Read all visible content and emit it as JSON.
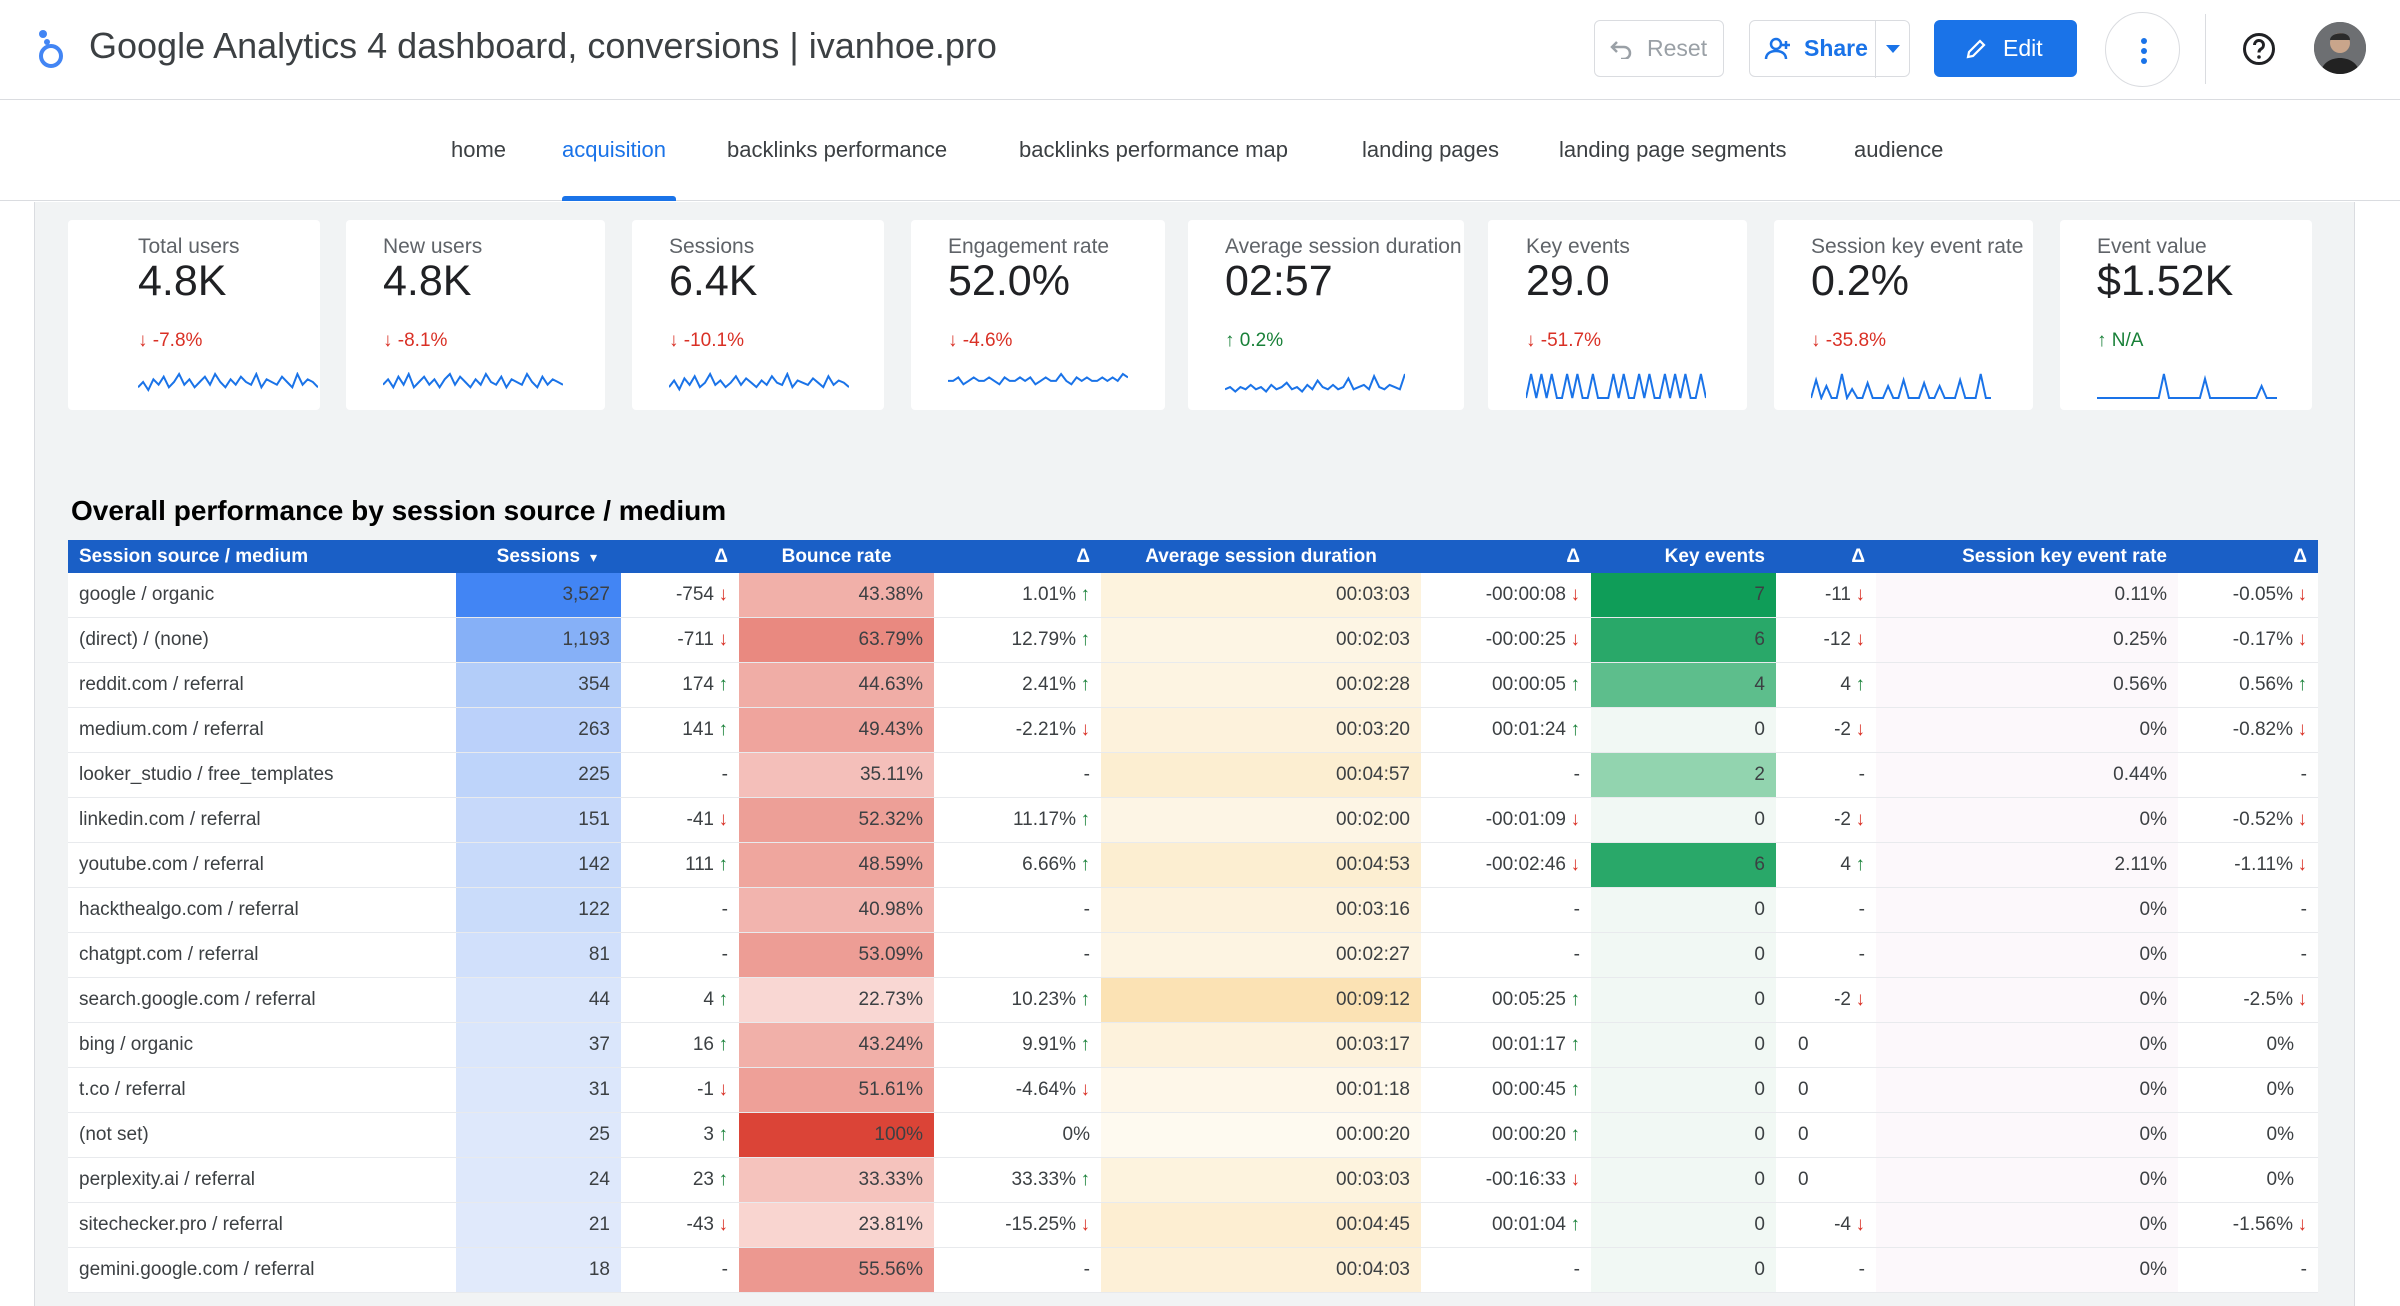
{
  "header": {
    "title": "Google Analytics 4 dashboard, conversions | ivanhoe.pro",
    "reset_label": "Reset",
    "share_label": "Share",
    "edit_label": "Edit"
  },
  "tabs": [
    {
      "label": "home"
    },
    {
      "label": "acquisition",
      "active": true
    },
    {
      "label": "backlinks performance"
    },
    {
      "label": "backlinks performance map"
    },
    {
      "label": "landing pages"
    },
    {
      "label": "landing page segments"
    },
    {
      "label": "audience"
    }
  ],
  "scorecards": [
    {
      "label": "Total users",
      "value": "4.8K",
      "change": "-7.8%",
      "direction": "down",
      "spark": [
        4,
        6,
        3,
        7,
        5,
        8,
        4,
        6,
        9,
        5,
        7,
        4,
        6,
        8,
        5,
        9,
        6,
        4,
        7,
        5,
        8,
        6,
        5,
        9,
        4,
        7,
        6,
        5,
        8,
        6,
        4,
        9,
        5,
        7,
        6,
        4
      ]
    },
    {
      "label": "New users",
      "value": "4.8K",
      "change": "-8.1%",
      "direction": "down",
      "spark": [
        5,
        7,
        4,
        8,
        5,
        9,
        4,
        6,
        8,
        5,
        7,
        4,
        7,
        9,
        5,
        8,
        6,
        4,
        7,
        5,
        9,
        6,
        5,
        8,
        4,
        7,
        6,
        5,
        9,
        6,
        4,
        8,
        5,
        7,
        6,
        5
      ]
    },
    {
      "label": "Sessions",
      "value": "6.4K",
      "change": "-10.1%",
      "direction": "down",
      "spark": [
        5,
        8,
        4,
        9,
        6,
        10,
        5,
        7,
        11,
        6,
        8,
        5,
        7,
        10,
        6,
        9,
        7,
        5,
        8,
        6,
        10,
        7,
        6,
        11,
        5,
        8,
        7,
        6,
        9,
        7,
        5,
        10,
        6,
        8,
        7,
        5
      ]
    },
    {
      "label": "Engagement rate",
      "value": "52.0%",
      "change": "-4.6%",
      "direction": "down",
      "spark": [
        5,
        5,
        6,
        4,
        5,
        6,
        5,
        5,
        6,
        5,
        4,
        6,
        5,
        5,
        6,
        5,
        6,
        4,
        5,
        6,
        5,
        5,
        7,
        5,
        4,
        6,
        5,
        6,
        5,
        5,
        6,
        5,
        6,
        5,
        7,
        6
      ]
    },
    {
      "label": "Average session duration",
      "value": "02:57",
      "change": "0.2%",
      "direction": "up",
      "spark": [
        4,
        5,
        3,
        5,
        4,
        6,
        4,
        5,
        3,
        6,
        4,
        5,
        7,
        4,
        5,
        3,
        6,
        4,
        8,
        5,
        4,
        6,
        4,
        5,
        9,
        4,
        5,
        6,
        4,
        10,
        5,
        4,
        6,
        5,
        4,
        11
      ]
    },
    {
      "label": "Key events",
      "value": "29.0",
      "change": "-51.7%",
      "direction": "down",
      "spark": [
        0,
        10,
        0,
        10,
        0,
        10,
        0,
        0,
        10,
        0,
        10,
        0,
        0,
        10,
        0,
        0,
        0,
        10,
        0,
        10,
        0,
        0,
        10,
        0,
        10,
        0,
        0,
        10,
        0,
        10,
        0,
        10,
        0,
        0,
        10,
        0
      ]
    },
    {
      "label": "Session key event rate",
      "value": "0.2%",
      "change": "-35.8%",
      "direction": "down",
      "spark": [
        0,
        6,
        0,
        4,
        0,
        0,
        8,
        0,
        3,
        0,
        0,
        5,
        0,
        0,
        0,
        4,
        0,
        0,
        6,
        0,
        0,
        0,
        5,
        0,
        0,
        4,
        0,
        0,
        0,
        6,
        0,
        0,
        0,
        8,
        0,
        0
      ]
    },
    {
      "label": "Event value",
      "value": "$1.52K",
      "change": "N/A",
      "direction": "up",
      "spark": [
        0,
        0,
        0,
        0,
        0,
        0,
        0,
        0,
        0,
        0,
        0,
        0,
        0,
        10,
        0,
        0,
        0,
        0,
        0,
        0,
        0,
        8,
        0,
        0,
        0,
        0,
        0,
        0,
        0,
        0,
        0,
        0,
        5,
        0,
        0,
        0
      ]
    }
  ],
  "section_title": "Overall performance by session source / medium",
  "table": {
    "headers": [
      "Session source / medium",
      "Sessions",
      "Δ",
      "Bounce rate",
      "Δ",
      "Average session duration",
      "Δ",
      "Key events",
      "Δ",
      "Session key event rate",
      "Δ"
    ],
    "rows": [
      {
        "source": "google / organic",
        "sessions": "3,527",
        "sessions_num": 3527,
        "sessions_d": "-754",
        "sessions_dir": "down",
        "bounce": "43.38%",
        "bounce_num": 43.38,
        "bounce_d": "1.01%",
        "bounce_dir": "up",
        "dur": "00:03:03",
        "dur_sec": 183,
        "dur_d": "-00:00:08",
        "dur_dir": "down",
        "ke": "7",
        "ke_num": 7,
        "ke_d": "-11",
        "ke_dir": "down",
        "rate": "0.11%",
        "rate_d": "-0.05%",
        "rate_dir": "down"
      },
      {
        "source": "(direct) / (none)",
        "sessions": "1,193",
        "sessions_num": 1193,
        "sessions_d": "-711",
        "sessions_dir": "down",
        "bounce": "63.79%",
        "bounce_num": 63.79,
        "bounce_d": "12.79%",
        "bounce_dir": "up",
        "dur": "00:02:03",
        "dur_sec": 123,
        "dur_d": "-00:00:25",
        "dur_dir": "down",
        "ke": "6",
        "ke_num": 6,
        "ke_d": "-12",
        "ke_dir": "down",
        "rate": "0.25%",
        "rate_d": "-0.17%",
        "rate_dir": "down"
      },
      {
        "source": "reddit.com / referral",
        "sessions": "354",
        "sessions_num": 354,
        "sessions_d": "174",
        "sessions_dir": "up",
        "bounce": "44.63%",
        "bounce_num": 44.63,
        "bounce_d": "2.41%",
        "bounce_dir": "up",
        "dur": "00:02:28",
        "dur_sec": 148,
        "dur_d": "00:00:05",
        "dur_dir": "up",
        "ke": "4",
        "ke_num": 4,
        "ke_d": "4",
        "ke_dir": "up",
        "rate": "0.56%",
        "rate_d": "0.56%",
        "rate_dir": "up"
      },
      {
        "source": "medium.com / referral",
        "sessions": "263",
        "sessions_num": 263,
        "sessions_d": "141",
        "sessions_dir": "up",
        "bounce": "49.43%",
        "bounce_num": 49.43,
        "bounce_d": "-2.21%",
        "bounce_dir": "down",
        "dur": "00:03:20",
        "dur_sec": 200,
        "dur_d": "00:01:24",
        "dur_dir": "up",
        "ke": "0",
        "ke_num": 0,
        "ke_d": "-2",
        "ke_dir": "down",
        "rate": "0%",
        "rate_d": "-0.82%",
        "rate_dir": "down"
      },
      {
        "source": "looker_studio / free_templates",
        "sessions": "225",
        "sessions_num": 225,
        "sessions_d": "-",
        "sessions_dir": "",
        "bounce": "35.11%",
        "bounce_num": 35.11,
        "bounce_d": "-",
        "bounce_dir": "",
        "dur": "00:04:57",
        "dur_sec": 297,
        "dur_d": "-",
        "dur_dir": "",
        "ke": "2",
        "ke_num": 2,
        "ke_d": "-",
        "ke_dir": "",
        "rate": "0.44%",
        "rate_d": "-",
        "rate_dir": ""
      },
      {
        "source": "linkedin.com / referral",
        "sessions": "151",
        "sessions_num": 151,
        "sessions_d": "-41",
        "sessions_dir": "down",
        "bounce": "52.32%",
        "bounce_num": 52.32,
        "bounce_d": "11.17%",
        "bounce_dir": "up",
        "dur": "00:02:00",
        "dur_sec": 120,
        "dur_d": "-00:01:09",
        "dur_dir": "down",
        "ke": "0",
        "ke_num": 0,
        "ke_d": "-2",
        "ke_dir": "down",
        "rate": "0%",
        "rate_d": "-0.52%",
        "rate_dir": "down"
      },
      {
        "source": "youtube.com / referral",
        "sessions": "142",
        "sessions_num": 142,
        "sessions_d": "111",
        "sessions_dir": "up",
        "bounce": "48.59%",
        "bounce_num": 48.59,
        "bounce_d": "6.66%",
        "bounce_dir": "up",
        "dur": "00:04:53",
        "dur_sec": 293,
        "dur_d": "-00:02:46",
        "dur_dir": "down",
        "ke": "6",
        "ke_num": 6,
        "ke_d": "4",
        "ke_dir": "up",
        "rate": "2.11%",
        "rate_d": "-1.11%",
        "rate_dir": "down"
      },
      {
        "source": "hackthealgo.com / referral",
        "sessions": "122",
        "sessions_num": 122,
        "sessions_d": "-",
        "sessions_dir": "",
        "bounce": "40.98%",
        "bounce_num": 40.98,
        "bounce_d": "-",
        "bounce_dir": "",
        "dur": "00:03:16",
        "dur_sec": 196,
        "dur_d": "-",
        "dur_dir": "",
        "ke": "0",
        "ke_num": 0,
        "ke_d": "-",
        "ke_dir": "",
        "rate": "0%",
        "rate_d": "-",
        "rate_dir": ""
      },
      {
        "source": "chatgpt.com / referral",
        "sessions": "81",
        "sessions_num": 81,
        "sessions_d": "-",
        "sessions_dir": "",
        "bounce": "53.09%",
        "bounce_num": 53.09,
        "bounce_d": "-",
        "bounce_dir": "",
        "dur": "00:02:27",
        "dur_sec": 147,
        "dur_d": "-",
        "dur_dir": "",
        "ke": "0",
        "ke_num": 0,
        "ke_d": "-",
        "ke_dir": "",
        "rate": "0%",
        "rate_d": "-",
        "rate_dir": ""
      },
      {
        "source": "search.google.com / referral",
        "sessions": "44",
        "sessions_num": 44,
        "sessions_d": "4",
        "sessions_dir": "up",
        "bounce": "22.73%",
        "bounce_num": 22.73,
        "bounce_d": "10.23%",
        "bounce_dir": "up",
        "dur": "00:09:12",
        "dur_sec": 552,
        "dur_d": "00:05:25",
        "dur_dir": "up",
        "ke": "0",
        "ke_num": 0,
        "ke_d": "-2",
        "ke_dir": "down",
        "rate": "0%",
        "rate_d": "-2.5%",
        "rate_dir": "down"
      },
      {
        "source": "bing / organic",
        "sessions": "37",
        "sessions_num": 37,
        "sessions_d": "16",
        "sessions_dir": "up",
        "bounce": "43.24%",
        "bounce_num": 43.24,
        "bounce_d": "9.91%",
        "bounce_dir": "up",
        "dur": "00:03:17",
        "dur_sec": 197,
        "dur_d": "00:01:17",
        "dur_dir": "up",
        "ke": "0",
        "ke_num": 0,
        "ke_d": "0",
        "ke_dir": "",
        "rate": "0%",
        "rate_d": "0%",
        "rate_dir": ""
      },
      {
        "source": "t.co / referral",
        "sessions": "31",
        "sessions_num": 31,
        "sessions_d": "-1",
        "sessions_dir": "down",
        "bounce": "51.61%",
        "bounce_num": 51.61,
        "bounce_d": "-4.64%",
        "bounce_dir": "down",
        "dur": "00:01:18",
        "dur_sec": 78,
        "dur_d": "00:00:45",
        "dur_dir": "up",
        "ke": "0",
        "ke_num": 0,
        "ke_d": "0",
        "ke_dir": "",
        "rate": "0%",
        "rate_d": "0%",
        "rate_dir": ""
      },
      {
        "source": "(not set)",
        "sessions": "25",
        "sessions_num": 25,
        "sessions_d": "3",
        "sessions_dir": "up",
        "bounce": "100%",
        "bounce_num": 100,
        "bounce_d": "0%",
        "bounce_dir": "",
        "dur": "00:00:20",
        "dur_sec": 20,
        "dur_d": "00:00:20",
        "dur_dir": "up",
        "ke": "0",
        "ke_num": 0,
        "ke_d": "0",
        "ke_dir": "",
        "rate": "0%",
        "rate_d": "0%",
        "rate_dir": ""
      },
      {
        "source": "perplexity.ai / referral",
        "sessions": "24",
        "sessions_num": 24,
        "sessions_d": "23",
        "sessions_dir": "up",
        "bounce": "33.33%",
        "bounce_num": 33.33,
        "bounce_d": "33.33%",
        "bounce_dir": "up",
        "dur": "00:03:03",
        "dur_sec": 183,
        "dur_d": "-00:16:33",
        "dur_dir": "down",
        "ke": "0",
        "ke_num": 0,
        "ke_d": "0",
        "ke_dir": "",
        "rate": "0%",
        "rate_d": "0%",
        "rate_dir": ""
      },
      {
        "source": "sitechecker.pro / referral",
        "sessions": "21",
        "sessions_num": 21,
        "sessions_d": "-43",
        "sessions_dir": "down",
        "bounce": "23.81%",
        "bounce_num": 23.81,
        "bounce_d": "-15.25%",
        "bounce_dir": "down",
        "dur": "00:04:45",
        "dur_sec": 285,
        "dur_d": "00:01:04",
        "dur_dir": "up",
        "ke": "0",
        "ke_num": 0,
        "ke_d": "-4",
        "ke_dir": "down",
        "rate": "0%",
        "rate_d": "-1.56%",
        "rate_dir": "down"
      },
      {
        "source": "gemini.google.com / referral",
        "sessions": "18",
        "sessions_num": 18,
        "sessions_d": "-",
        "sessions_dir": "",
        "bounce": "55.56%",
        "bounce_num": 55.56,
        "bounce_d": "-",
        "bounce_dir": "",
        "dur": "00:04:03",
        "dur_sec": 243,
        "dur_d": "-",
        "dur_dir": "",
        "ke": "0",
        "ke_num": 0,
        "ke_d": "-",
        "ke_dir": "",
        "rate": "0%",
        "rate_d": "-",
        "rate_dir": ""
      }
    ]
  },
  "colors": {
    "accent": "#1a73e8",
    "header_bg": "#1a5fc6",
    "positive": "#188038",
    "negative": "#d93025"
  }
}
